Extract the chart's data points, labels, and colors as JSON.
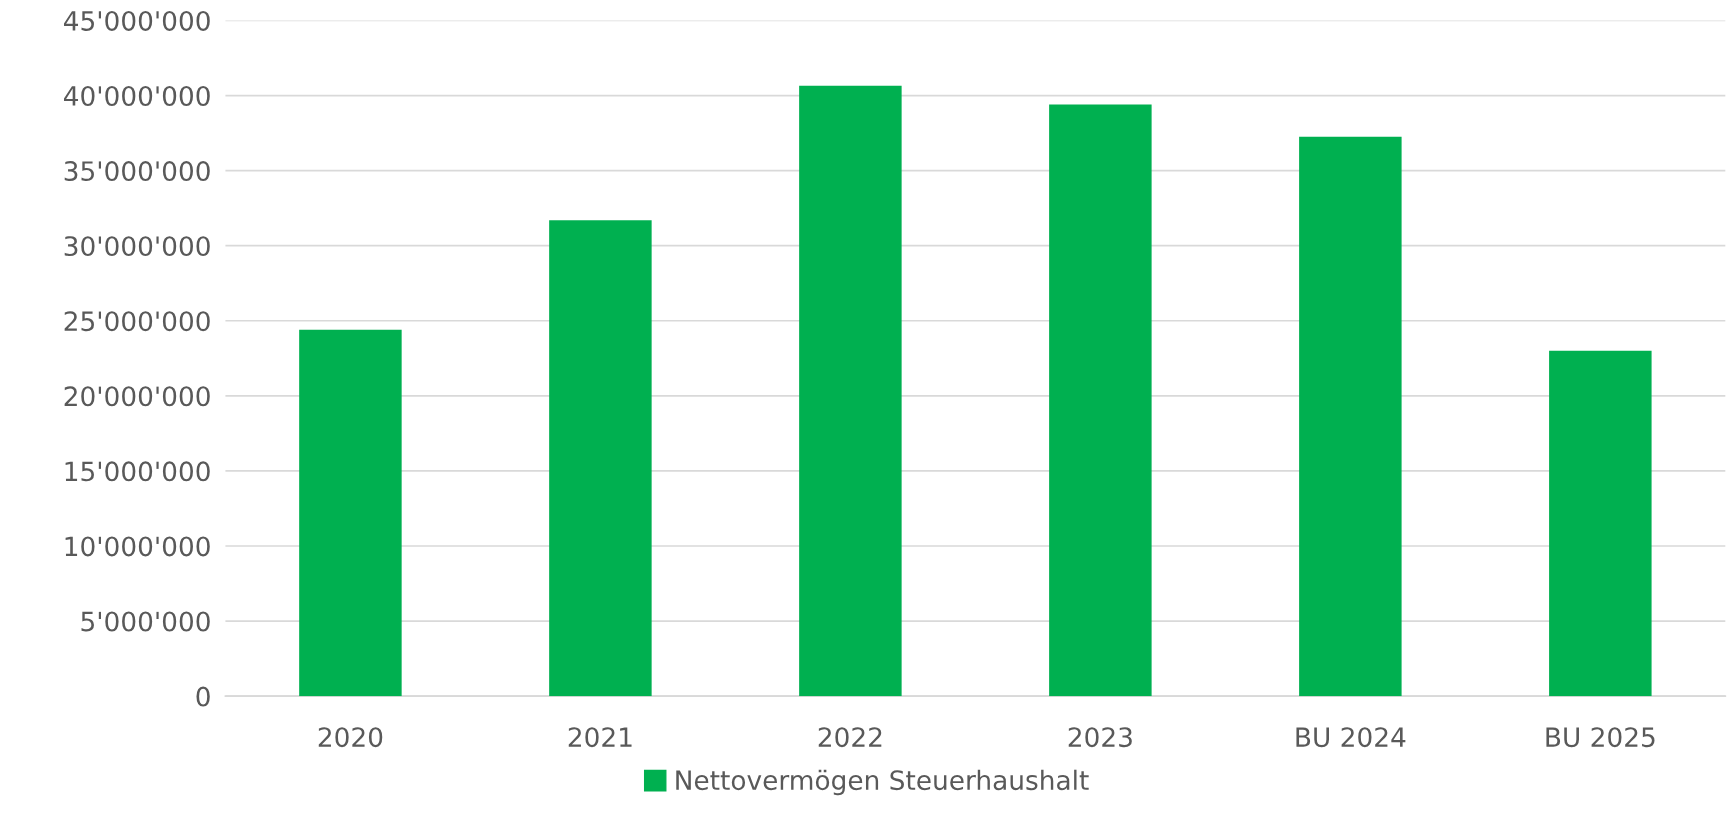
{
  "chart_data": {
    "type": "bar",
    "categories": [
      "2020",
      "2021",
      "2022",
      "2023",
      "BU 2024",
      "BU 2025"
    ],
    "series": [
      {
        "name": "Nettovermögen Steuerhaushalt",
        "color": "#00b050",
        "values": [
          24400000,
          31700000,
          40650000,
          39400000,
          37250000,
          23000000
        ]
      }
    ],
    "ylim": [
      0,
      45000000
    ],
    "yticks": [
      0,
      {
        "value": 5000000,
        "label": "5'000'000"
      },
      {
        "value": 10000000,
        "label": "10'000'000"
      },
      {
        "value": 15000000,
        "label": "15'000'000"
      },
      {
        "value": 20000000,
        "label": "20'000'000"
      },
      {
        "value": 25000000,
        "label": "25'000'000"
      },
      {
        "value": 30000000,
        "label": "30'000'000"
      },
      {
        "value": 35000000,
        "label": "35'000'000"
      },
      {
        "value": 40000000,
        "label": "40'000'000"
      },
      {
        "value": 45000000,
        "label": "45'000'000"
      }
    ],
    "grid": "y",
    "legend": "bottom"
  }
}
